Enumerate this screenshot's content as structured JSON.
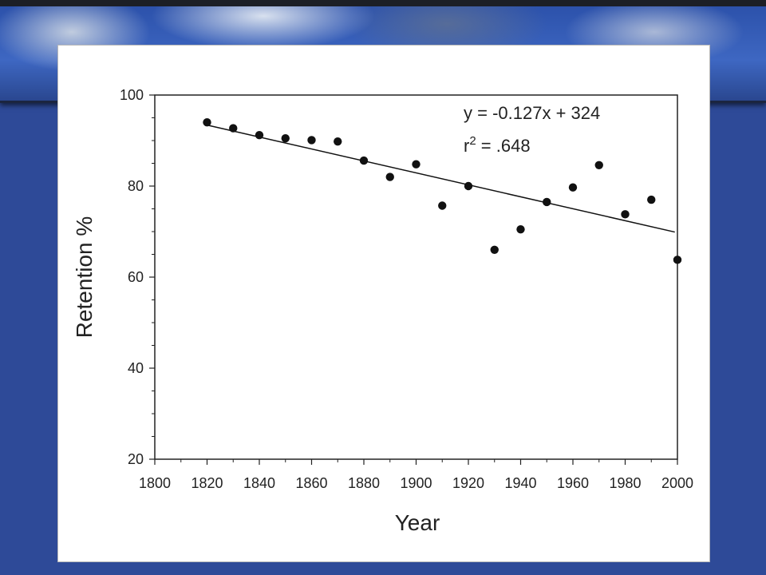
{
  "chart_data": {
    "type": "scatter",
    "xlabel": "Year",
    "ylabel": "Retention %",
    "xlim": [
      1800,
      2000
    ],
    "ylim": [
      20,
      100
    ],
    "x_ticks": [
      "1800",
      "1820",
      "1840",
      "1860",
      "1880",
      "1900",
      "1920",
      "1940",
      "1960",
      "1980",
      "2000"
    ],
    "y_ticks": [
      "20",
      "40",
      "60",
      "80",
      "100"
    ],
    "series": [
      {
        "x": [
          1820,
          1830,
          1840,
          1850,
          1860,
          1870,
          1880,
          1890,
          1900,
          1910,
          1920,
          1930,
          1940,
          1950,
          1960,
          1970,
          1980,
          1990,
          2000
        ],
        "y": [
          94,
          92.7,
          91.2,
          90.5,
          90.1,
          89.8,
          85.6,
          82,
          84.8,
          75.7,
          80,
          66,
          70.5,
          76.5,
          79.7,
          84.6,
          73.8,
          77,
          63.8
        ]
      }
    ],
    "trendline": {
      "x": [
        1820,
        1999
      ],
      "y": [
        93.4,
        69.9
      ]
    },
    "equation": "y = -0.127x + 324",
    "r2_prefix": "r",
    "r2_exponent": "2",
    "r2_value": " = .648",
    "grid": false,
    "colors": {
      "points": "#111111",
      "line": "#111111",
      "axis": "#222222"
    }
  }
}
